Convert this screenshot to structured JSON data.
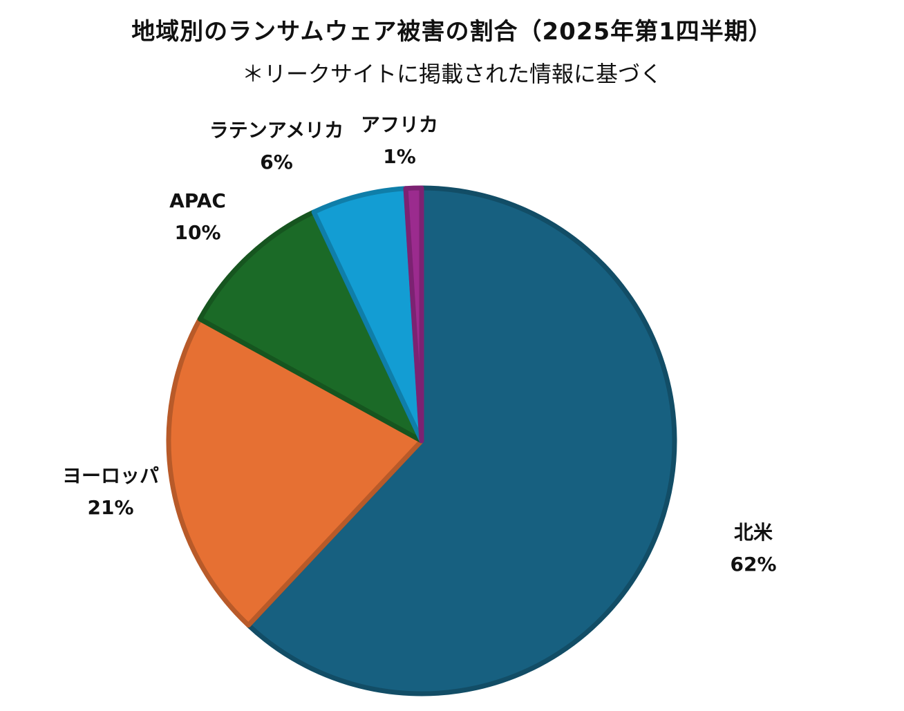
{
  "chart_data": {
    "type": "pie",
    "title": "地域別のランサムウェア被害の割合（2025年第1四半期）",
    "subtitle": "＊リークサイトに掲載された情報に基づく",
    "slices": [
      {
        "name": "北米",
        "value": 62,
        "value_label": "62%",
        "color": "#176080"
      },
      {
        "name": "ヨーロッパ",
        "value": 21,
        "value_label": "21%",
        "color": "#E67033"
      },
      {
        "name": "APAC",
        "value": 10,
        "value_label": "10%",
        "color": "#1B6A27"
      },
      {
        "name": "ラテンアメリカ",
        "value": 6,
        "value_label": "6%",
        "color": "#139DD3"
      },
      {
        "name": "アフリカ",
        "value": 1,
        "value_label": "1%",
        "color": "#9B2B8E"
      }
    ],
    "start_angle": "12 o'clock",
    "direction": "clockwise",
    "legend": "none",
    "labels": "outside"
  }
}
